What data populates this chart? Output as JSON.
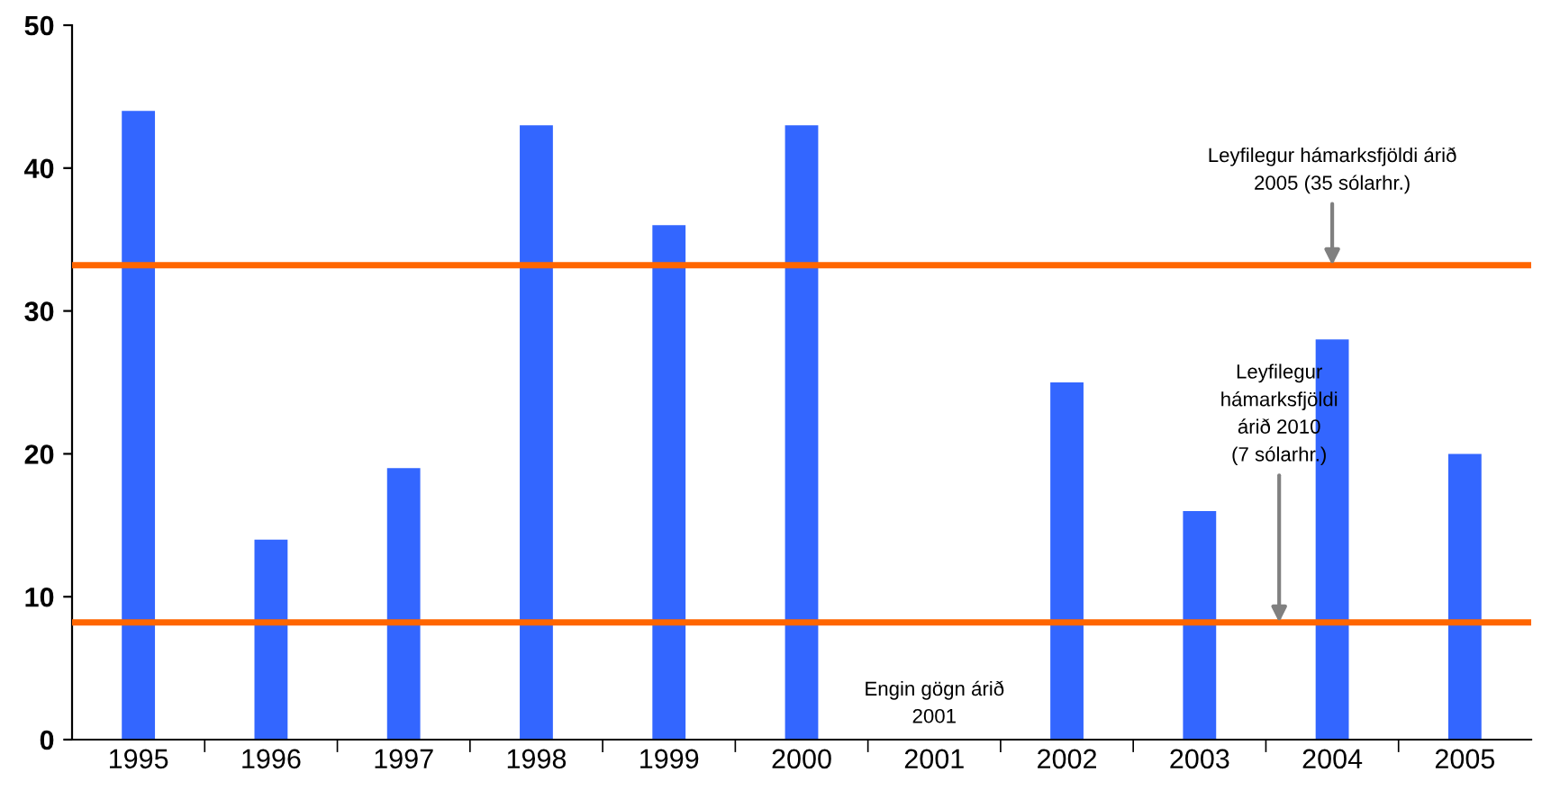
{
  "chart_data": {
    "type": "bar",
    "categories": [
      "1995",
      "1996",
      "1997",
      "1998",
      "1999",
      "2000",
      "2001",
      "2002",
      "2003",
      "2004",
      "2005"
    ],
    "values": [
      44,
      14,
      19,
      43,
      36,
      43,
      null,
      25,
      16,
      28,
      20
    ],
    "color": "#3366ff",
    "ylim": [
      0,
      50
    ],
    "yticks": [
      0,
      10,
      20,
      30,
      40,
      50
    ],
    "grid": false,
    "ref_lines": [
      {
        "axis": "y",
        "value": 33.2,
        "color": "#ff6600"
      },
      {
        "axis": "y",
        "value": 8.2,
        "color": "#ff6600"
      }
    ],
    "annotations": [
      {
        "text": "Leyfilegur hámarksfjöldi árið\n2005 (35 sólarhr.)",
        "x": "2004",
        "y": 33.2
      },
      {
        "text": "Leyfilegur\nhámarksfjöldi\nárið 2010\n(7 sólarhr.)",
        "y": 8.2
      },
      "Engin gögn árið\n2001"
    ]
  }
}
